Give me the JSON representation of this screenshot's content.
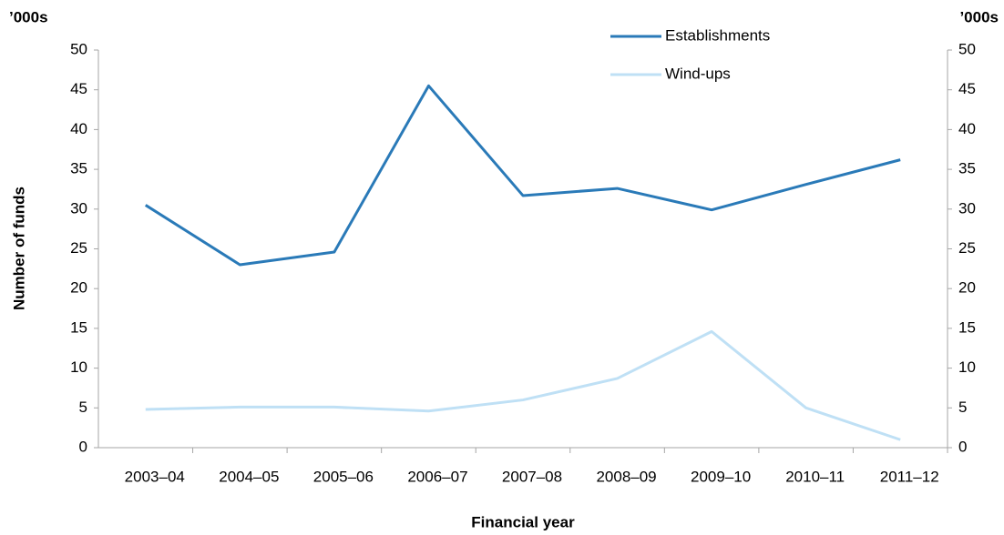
{
  "chart_data": {
    "type": "line",
    "y_unit_label": "’000s",
    "y2_unit_label": "’000s",
    "x_label": "Financial year",
    "y_label": "Number of funds",
    "categories": [
      "2003–04",
      "2004–05",
      "2005–06",
      "2006–07",
      "2007–08",
      "2008–09",
      "2009–10",
      "2010–11",
      "2011–12"
    ],
    "series": [
      {
        "name": "Establishments",
        "color": "#2a7ab8",
        "values": [
          30.5,
          23,
          24.6,
          45.5,
          31.7,
          32.6,
          29.9,
          33.1,
          36.2
        ]
      },
      {
        "name": "Wind-ups",
        "color": "#bfe0f5",
        "values": [
          4.8,
          5.1,
          5.1,
          4.6,
          6.0,
          8.7,
          14.6,
          5.0,
          1.0
        ]
      }
    ],
    "ylim": [
      0,
      50
    ],
    "yticks": [
      0,
      5,
      10,
      15,
      20,
      25,
      30,
      35,
      40,
      45,
      50
    ],
    "y2lim": [
      0,
      50
    ],
    "y2ticks": [
      0,
      5,
      10,
      15,
      20,
      25,
      30,
      35,
      40,
      45,
      50
    ],
    "grid": false,
    "legend": "upper right"
  }
}
